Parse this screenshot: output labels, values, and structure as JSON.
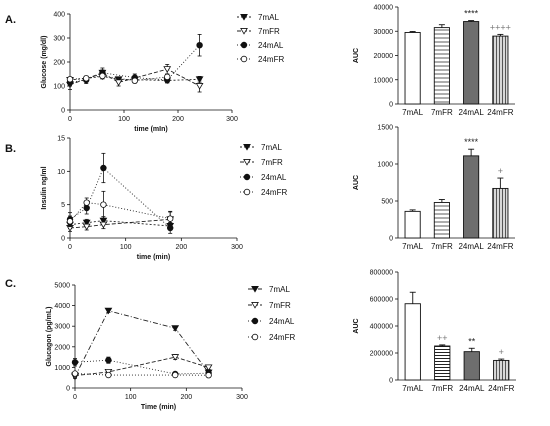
{
  "panels": [
    {
      "letter": "A."
    },
    {
      "letter": "B."
    },
    {
      "letter": "C."
    }
  ],
  "chart_data": [
    {
      "id": "A-line",
      "type": "line",
      "xlabel": "time (mIn)",
      "ylabel": "Glucose (mg/dl)",
      "xlim": [
        0,
        300
      ],
      "ylim": [
        0,
        400
      ],
      "xticks": [
        0,
        100,
        200,
        300
      ],
      "yticks": [
        0,
        100,
        200,
        300,
        400
      ],
      "legend_position": "right",
      "series": [
        {
          "name": "7mAL",
          "marker": "tri-down-filled",
          "dash": "2,2",
          "x": [
            0,
            60,
            90,
            180,
            240
          ],
          "y": [
            125,
            140,
            128,
            123,
            128
          ],
          "err": [
            12,
            10,
            8,
            10,
            12
          ]
        },
        {
          "name": "7mFR",
          "marker": "tri-down-open",
          "dash": "4,2",
          "x": [
            0,
            60,
            90,
            180,
            240
          ],
          "y": [
            105,
            155,
            115,
            170,
            100
          ],
          "err": [
            20,
            12,
            15,
            20,
            25
          ]
        },
        {
          "name": "24mAL",
          "marker": "circle-filled",
          "dash": "1,2",
          "x": [
            0,
            30,
            60,
            120,
            180,
            240
          ],
          "y": [
            115,
            125,
            155,
            135,
            125,
            270
          ],
          "err": [
            15,
            15,
            20,
            15,
            12,
            45
          ]
        },
        {
          "name": "24mFR",
          "marker": "circle-open",
          "dash": "1,2",
          "x": [
            0,
            30,
            60,
            120,
            180
          ],
          "y": [
            128,
            132,
            142,
            122,
            138
          ],
          "err": [
            10,
            10,
            12,
            10,
            12
          ]
        }
      ]
    },
    {
      "id": "A-bar",
      "type": "bar",
      "ylabel": "AUC",
      "categories": [
        "7mAL",
        "7mFR",
        "24mAL",
        "24mFR"
      ],
      "values": [
        29500,
        31500,
        34000,
        28000
      ],
      "errors": [
        400,
        1200,
        400,
        700
      ],
      "ylim": [
        0,
        40000
      ],
      "yticks": [
        0,
        10000,
        20000,
        30000,
        40000
      ],
      "fills": [
        "#ffffff",
        "stripes",
        "#6e6e6e",
        "vstripes"
      ],
      "annotations": [
        {
          "index": 2,
          "text": "****"
        },
        {
          "index": 3,
          "text": "++++"
        }
      ]
    },
    {
      "id": "B-line",
      "type": "line",
      "xlabel": "time (min)",
      "ylabel": "Insulin ng/ml",
      "xlim": [
        0,
        300
      ],
      "ylim": [
        0,
        15
      ],
      "xticks": [
        0,
        100,
        200,
        300
      ],
      "yticks": [
        0,
        5,
        10,
        15
      ],
      "legend_position": "right",
      "series": [
        {
          "name": "7mAL",
          "marker": "tri-down-filled",
          "dash": "2,2",
          "x": [
            0,
            30,
            60,
            180
          ],
          "y": [
            2.0,
            2.3,
            2.6,
            1.8
          ],
          "err": [
            0.6,
            0.5,
            0.6,
            0.5
          ]
        },
        {
          "name": "7mFR",
          "marker": "tri-down-open",
          "dash": "4,2",
          "x": [
            0,
            30,
            60,
            180
          ],
          "y": [
            1.5,
            1.7,
            2.0,
            2.8
          ],
          "err": [
            0.5,
            0.5,
            0.6,
            1.2
          ]
        },
        {
          "name": "24mAL",
          "marker": "circle-filled",
          "dash": "1,2",
          "x": [
            0,
            30,
            60,
            180
          ],
          "y": [
            2.8,
            4.5,
            10.5,
            1.5
          ],
          "err": [
            1.0,
            0.9,
            2.2,
            0.8
          ]
        },
        {
          "name": "24mFR",
          "marker": "circle-open",
          "dash": "1,2",
          "x": [
            0,
            30,
            60,
            180
          ],
          "y": [
            2.5,
            5.3,
            5.0,
            2.9
          ],
          "err": [
            0.8,
            0.7,
            2.0,
            1.0
          ]
        }
      ]
    },
    {
      "id": "B-bar",
      "type": "bar",
      "ylabel": "AUC",
      "categories": [
        "7mAL",
        "7mFR",
        "24mAL",
        "24mFR"
      ],
      "values": [
        360,
        480,
        1110,
        670
      ],
      "errors": [
        20,
        40,
        90,
        140
      ],
      "ylim": [
        0,
        1500
      ],
      "yticks": [
        0,
        500,
        1000,
        1500
      ],
      "fills": [
        "#ffffff",
        "stripes",
        "#6e6e6e",
        "vstripes"
      ],
      "annotations": [
        {
          "index": 2,
          "text": "****"
        },
        {
          "index": 3,
          "text": "+"
        }
      ]
    },
    {
      "id": "C-line",
      "type": "line",
      "xlabel": "Time (min)",
      "ylabel": "Glucagon (pg/mL)",
      "xlim": [
        0,
        300
      ],
      "ylim": [
        0,
        5000
      ],
      "xticks": [
        0,
        100,
        200,
        300
      ],
      "yticks": [
        0,
        1000,
        2000,
        3000,
        4000,
        5000
      ],
      "legend_position": "right",
      "series": [
        {
          "name": "7mAL",
          "marker": "tri-down-filled",
          "dash": "5,2,1,2",
          "x": [
            0,
            60,
            180,
            240
          ],
          "y": [
            550,
            3750,
            2900,
            750
          ],
          "err": [
            80,
            80,
            100,
            80
          ]
        },
        {
          "name": "7mFR",
          "marker": "tri-down-open",
          "dash": "4,2",
          "x": [
            0,
            60,
            180,
            240
          ],
          "y": [
            600,
            780,
            1500,
            1000
          ],
          "err": [
            80,
            80,
            120,
            100
          ]
        },
        {
          "name": "24mAL",
          "marker": "circle-filled",
          "dash": "1,2",
          "x": [
            0,
            60,
            180,
            240
          ],
          "y": [
            1250,
            1350,
            680,
            720
          ],
          "err": [
            180,
            150,
            80,
            80
          ]
        },
        {
          "name": "24mFR",
          "marker": "circle-open",
          "dash": "1,2",
          "x": [
            0,
            60,
            180,
            240
          ],
          "y": [
            700,
            630,
            630,
            620
          ],
          "err": [
            80,
            60,
            60,
            60
          ]
        }
      ]
    },
    {
      "id": "C-bar",
      "type": "bar",
      "ylabel": "AUC",
      "categories": [
        "7mAL",
        "7mFR",
        "24mAL",
        "24mFR"
      ],
      "values": [
        565000,
        252000,
        210000,
        145000
      ],
      "errors": [
        85000,
        8000,
        25000,
        10000
      ],
      "ylim": [
        0,
        800000
      ],
      "yticks": [
        0,
        200000,
        400000,
        600000,
        800000
      ],
      "fills": [
        "#ffffff",
        "hstripes",
        "#6e6e6e",
        "vstripes"
      ],
      "annotations": [
        {
          "index": 1,
          "text": "++"
        },
        {
          "index": 2,
          "text": "**"
        },
        {
          "index": 3,
          "text": "+"
        }
      ]
    }
  ]
}
